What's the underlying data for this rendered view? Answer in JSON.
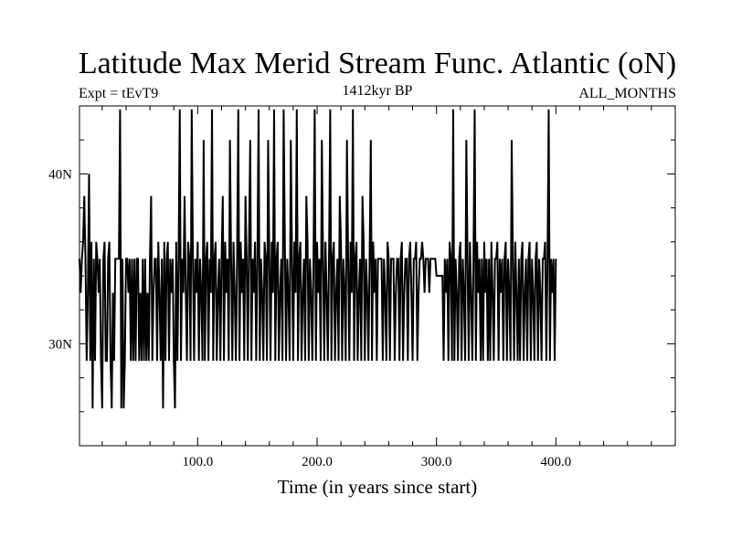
{
  "chart_data": {
    "type": "line",
    "title": "Latitude Max Merid Stream Func. Atlantic (oN)",
    "subtitle_left": "Expt = tEvT9",
    "subtitle_center": "1412kyr BP",
    "subtitle_right": "ALL_MONTHS",
    "xlabel": "Time (in years since start)",
    "ylabel": "",
    "xlim": [
      1,
      500
    ],
    "ylim": [
      24,
      44
    ],
    "x_ticks": [
      100,
      200,
      300,
      400
    ],
    "x_tick_labels": [
      "100.0",
      "200.0",
      "300.0",
      "400.0"
    ],
    "y_ticks": [
      30,
      40
    ],
    "y_tick_labels": [
      "30N",
      "40N"
    ],
    "y_minor_ticks": [
      26,
      28,
      32,
      34,
      36,
      38,
      42
    ],
    "grid": false,
    "line_color": "#000000",
    "series": [
      {
        "x_start": 1,
        "x_step": 1,
        "values": [
          35,
          33,
          35,
          36,
          38.7,
          35,
          29,
          33,
          40,
          29,
          36,
          26.2,
          35,
          29,
          36,
          35,
          33,
          35,
          29,
          26.2,
          35,
          36,
          29,
          29,
          35,
          36,
          29,
          26.2,
          33,
          29,
          35,
          35,
          35,
          35,
          43.8,
          26.2,
          35,
          26.2,
          29,
          35,
          35,
          33,
          35,
          29,
          35,
          29,
          35,
          29,
          35,
          35,
          29,
          33,
          29,
          35,
          29,
          35,
          29,
          33,
          29,
          35,
          38.7,
          29,
          33,
          35,
          35,
          29,
          36,
          33,
          29,
          35,
          26.2,
          36,
          29,
          35,
          36,
          29,
          35,
          33,
          35,
          29,
          26.2,
          36,
          29,
          35,
          43.8,
          29,
          35,
          33,
          38.7,
          33,
          29,
          36,
          35,
          29,
          43.8,
          35,
          29,
          35,
          33,
          36,
          29,
          35,
          33,
          29,
          42,
          29,
          35,
          36,
          29,
          35,
          33,
          43.8,
          29,
          35,
          36,
          29,
          33,
          35,
          29,
          35,
          38.7,
          29,
          36,
          33,
          35,
          29,
          42,
          35,
          29,
          36,
          33,
          29,
          35,
          43.8,
          29,
          36,
          33,
          35,
          29,
          38.7,
          35,
          29,
          36,
          42,
          29,
          35,
          33,
          36,
          29,
          35,
          43.8,
          29,
          35,
          33,
          29,
          36,
          35,
          29,
          42,
          35,
          29,
          36,
          33,
          43.8,
          29,
          35,
          36,
          29,
          33,
          35,
          29,
          43.8,
          36,
          29,
          35,
          33,
          29,
          42,
          35,
          29,
          36,
          33,
          43.8,
          29,
          35,
          36,
          29,
          33,
          35,
          29,
          38.7,
          36,
          29,
          35,
          33,
          29,
          35,
          43.8,
          29,
          36,
          33,
          35,
          29,
          42,
          35,
          29,
          36,
          33,
          29,
          35,
          43.8,
          29,
          35,
          36,
          29,
          33,
          35,
          29,
          38.7,
          36,
          29,
          35,
          33,
          29,
          42,
          35,
          29,
          36,
          33,
          43.8,
          29,
          35,
          36,
          29,
          33,
          35,
          29,
          38.7,
          36,
          29,
          35,
          33,
          29,
          35,
          42,
          29,
          36,
          33,
          35,
          29,
          35,
          35,
          35,
          35,
          29,
          35,
          33,
          29,
          36,
          35,
          29,
          35,
          35,
          35,
          29,
          33,
          35,
          35,
          29,
          35,
          36,
          29,
          33,
          35,
          35,
          29,
          35,
          36,
          33,
          29,
          35,
          35,
          36,
          29,
          33,
          35,
          35,
          36,
          35,
          33,
          35,
          35,
          35,
          33,
          35,
          35,
          35,
          35,
          35,
          34,
          34,
          34,
          34,
          34,
          34,
          29,
          35,
          33,
          35,
          29,
          36,
          35,
          29,
          43.8,
          29,
          35,
          33,
          29,
          35,
          36,
          29,
          35,
          33,
          29,
          42,
          35,
          29,
          36,
          33,
          29,
          35,
          43.8,
          29,
          36,
          33,
          35,
          29,
          35,
          29,
          36,
          33,
          35,
          29,
          35,
          29,
          36,
          33,
          29,
          35,
          35,
          36,
          29,
          35,
          33,
          35,
          29,
          35,
          36,
          29,
          35,
          33,
          29,
          42,
          35,
          29,
          36,
          33,
          29,
          35,
          29,
          35,
          36,
          29,
          33,
          35,
          29,
          35,
          36,
          29,
          35,
          33,
          29,
          35,
          36,
          29,
          35,
          33,
          29,
          35,
          35,
          36,
          29,
          35,
          43.8,
          29,
          35,
          33,
          35,
          29,
          35
        ]
      }
    ]
  }
}
